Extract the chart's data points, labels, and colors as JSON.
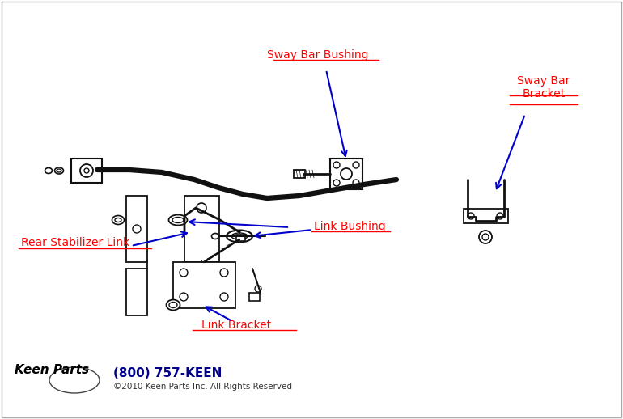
{
  "bg_color": "#ffffff",
  "labels": {
    "sway_bar_bushing": "Sway Bar Bushing",
    "sway_bar_bracket": "Sway Bar\nBracket",
    "link_bushing": "Link Bushing",
    "rear_stabilizer_link": "Rear Stabilizer Link",
    "link_bracket": "Link Bracket"
  },
  "label_color": "#ff0000",
  "arrow_color": "#0000cc",
  "part_color": "#111111",
  "footer_phone": "(800) 757-KEEN",
  "footer_copy": "©2010 Keen Parts Inc. All Rights Reserved",
  "footer_phone_color": "#00008b",
  "footer_copy_color": "#333333"
}
